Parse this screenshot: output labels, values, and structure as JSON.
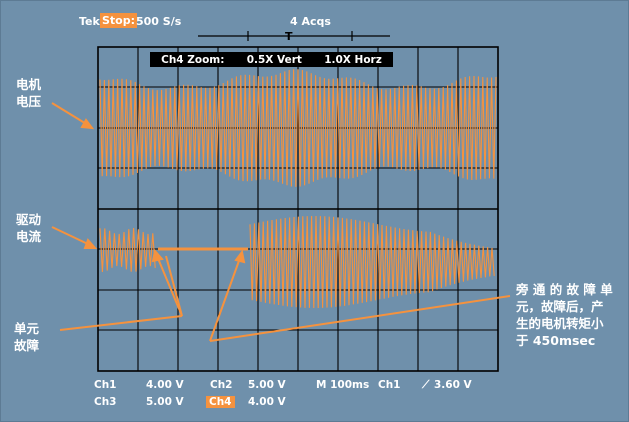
{
  "header": {
    "brand": "Tek",
    "state": "Stop:",
    "sample_rate": "500 S/s",
    "acquisitions": "4 Acqs",
    "trigger_marker": "T"
  },
  "zoom_bar": {
    "title": "Ch4 Zoom:",
    "vert": "0.5X Vert",
    "horz": "1.0X Horz"
  },
  "annotations": {
    "motor_voltage": [
      "电机",
      "电压"
    ],
    "drive_current": [
      "驱动",
      "电流"
    ],
    "unit_fault": [
      "单元",
      "故障"
    ],
    "bypass_note": [
      "旁 通 的 故 障 单",
      "元，故障后，产",
      "生的电机转矩小",
      "于 450msec"
    ]
  },
  "footer": {
    "ch1": "Ch1",
    "ch1_scale": "4.00 V",
    "ch2": "Ch2",
    "ch2_scale": "5.00 V",
    "timebase": "M 100ms",
    "trig_ch": "Ch1",
    "trig_level": "3.60 V",
    "ch3": "Ch3",
    "ch3_scale": "5.00 V",
    "ch4": "Ch4",
    "ch4_scale": "4.00 V"
  },
  "colors": {
    "background": "#6f90ab",
    "trace": "#f5923e",
    "grid": "#000000",
    "label": "#ffffff"
  }
}
